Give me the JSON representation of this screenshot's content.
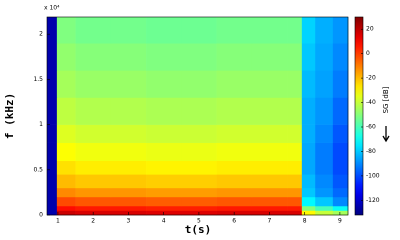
{
  "chart_data": {
    "type": "heatmap",
    "multiplier": "x 10⁴",
    "xlabel": "t(s)",
    "ylabel": "f (kHz)",
    "colorbar_label": "SG [dB]",
    "colormap": "jet",
    "x_bins": [
      0.69,
      0.97,
      1.5,
      2.5,
      3.5,
      4.5,
      5.5,
      6.5,
      7.5,
      7.92,
      8.3,
      8.8,
      9.23
    ],
    "y_bins": [
      0,
      0.05,
      0.1,
      0.2,
      0.3,
      0.45,
      0.6,
      0.8,
      1.0,
      1.3,
      1.6,
      1.9,
      2.19
    ],
    "z": [
      [
        -125,
        18,
        16,
        16,
        15,
        15,
        16,
        16,
        16,
        -30,
        -40,
        -45
      ],
      [
        -125,
        8,
        6,
        6,
        5,
        5,
        6,
        6,
        6,
        -50,
        -60,
        -70
      ],
      [
        -125,
        -2,
        -4,
        -4,
        -5,
        -5,
        -4,
        -4,
        -4,
        -72,
        -80,
        -90
      ],
      [
        -125,
        -12,
        -14,
        -14,
        -15,
        -15,
        -14,
        -14,
        -14,
        -80,
        -88,
        -95
      ],
      [
        -125,
        -20,
        -22,
        -22,
        -23,
        -23,
        -22,
        -22,
        -22,
        -82,
        -90,
        -98
      ],
      [
        -125,
        -26,
        -28,
        -28,
        -29,
        -29,
        -28,
        -28,
        -28,
        -85,
        -92,
        -100
      ],
      [
        -125,
        -31,
        -33,
        -33,
        -34,
        -34,
        -33,
        -33,
        -33,
        -85,
        -92,
        -100
      ],
      [
        -125,
        -36,
        -38,
        -38,
        -39,
        -39,
        -38,
        -38,
        -38,
        -84,
        -90,
        -98
      ],
      [
        -125,
        -41,
        -43,
        -43,
        -44,
        -44,
        -43,
        -43,
        -43,
        -84,
        -88,
        -95
      ],
      [
        -125,
        -45,
        -47,
        -47,
        -48,
        -48,
        -47,
        -47,
        -47,
        -82,
        -86,
        -92
      ],
      [
        -125,
        -48,
        -50,
        -50,
        -51,
        -51,
        -50,
        -50,
        -50,
        -80,
        -85,
        -90
      ],
      [
        -125,
        -51,
        -53,
        -53,
        -54,
        -54,
        -53,
        -53,
        -53,
        -78,
        -84,
        -88
      ]
    ],
    "xlim": [
      0.69,
      9.23
    ],
    "xticks": [
      1,
      2,
      3,
      4,
      5,
      6,
      7,
      8,
      9
    ],
    "ylim": [
      0,
      2.19
    ],
    "yticks": [
      0,
      0.5,
      1,
      1.5,
      2
    ],
    "clim": [
      -132,
      30
    ],
    "cticks": [
      20,
      0,
      -20,
      -40,
      -60,
      -80,
      -100,
      -120
    ]
  }
}
